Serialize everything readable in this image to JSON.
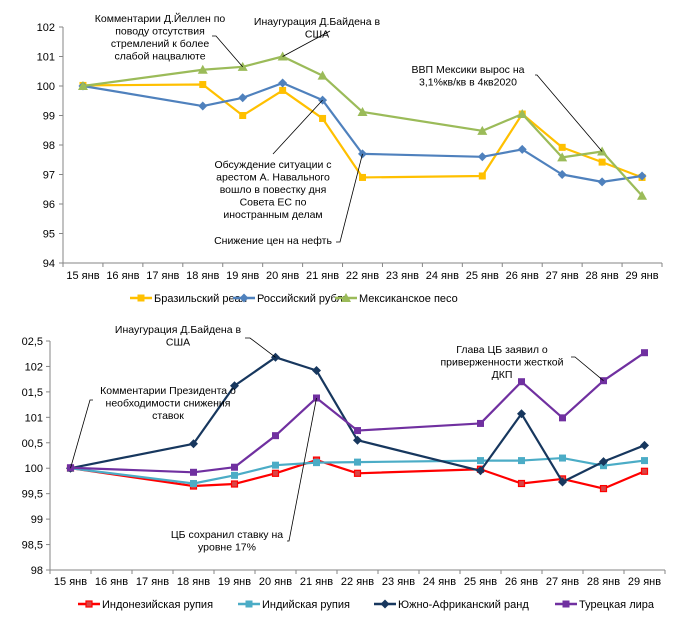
{
  "chart_data": [
    {
      "type": "line",
      "title": "",
      "xlabel": "",
      "ylabel": "",
      "ylim": [
        94,
        102
      ],
      "yticks": [
        "94",
        "95",
        "96",
        "97",
        "98",
        "99",
        "100",
        "101",
        "102"
      ],
      "categories": [
        "15 янв",
        "16 янв",
        "17 янв",
        "18 янв",
        "19 янв",
        "20 янв",
        "21 янв",
        "22 янв",
        "23 янв",
        "24 янв",
        "25 янв",
        "26 янв",
        "27 янв",
        "28 янв",
        "29 янв"
      ],
      "grid": false,
      "legend_position": "bottom",
      "series": [
        {
          "name": "Бразильский реал",
          "color": "#FFC000",
          "marker": "square",
          "values": [
            100.02,
            null,
            null,
            100.05,
            99.0,
            99.85,
            98.9,
            96.9,
            null,
            null,
            96.95,
            99.05,
            97.92,
            97.42,
            96.9
          ]
        },
        {
          "name": "Российский рубль",
          "color": "#4F81BD",
          "marker": "diamond",
          "values": [
            100.0,
            null,
            null,
            99.32,
            99.6,
            100.1,
            99.52,
            97.7,
            null,
            null,
            97.6,
            97.85,
            97.0,
            96.75,
            96.95
          ]
        },
        {
          "name": "Мексиканское песо",
          "color": "#9BBB59",
          "marker": "triangle",
          "values": [
            100.0,
            null,
            null,
            100.55,
            100.65,
            101.0,
            100.35,
            99.12,
            null,
            null,
            98.48,
            99.05,
            97.58,
            97.78,
            96.28
          ]
        }
      ],
      "annotations": [
        {
          "lines": [
            "Комментарии  Д.Йеллен по",
            "поводу отсутствия",
            "стремлений к более",
            "слабой нацвалюте"
          ],
          "target": {
            "series": 2,
            "category": "19 янв"
          }
        },
        {
          "lines": [
            "Инаугурация Д.Байдена в",
            "США"
          ],
          "target": {
            "series": 2,
            "category": "20 янв"
          }
        },
        {
          "lines": [
            "ВВП Мексики вырос на",
            "3,1%кв/кв в 4кв2020"
          ],
          "target": {
            "series": 2,
            "category": "28 янв"
          }
        },
        {
          "lines": [
            "Обсуждение ситуации с",
            "арестом А. Навального",
            "вошло в повестку дня",
            "Совета ЕС по",
            "иностранным делам"
          ],
          "target": {
            "series": 1,
            "category": "21 янв"
          }
        },
        {
          "lines": [
            "Снижение цен на нефть"
          ],
          "target": {
            "series": 1,
            "category": "22 янв"
          }
        }
      ]
    },
    {
      "type": "line",
      "title": "",
      "xlabel": "",
      "ylabel": "",
      "ylim": [
        98,
        102.5
      ],
      "yticks": [
        "98",
        "98,5",
        "99",
        "99,5",
        "100",
        "00,5",
        "101",
        "01,5",
        "102",
        "02,5"
      ],
      "categories": [
        "15 янв",
        "16 янв",
        "17 янв",
        "18 янв",
        "19 янв",
        "20 янв",
        "21 янв",
        "22 янв",
        "23 янв",
        "24 янв",
        "25 янв",
        "26 янв",
        "27 янв",
        "28 янв",
        "29 янв"
      ],
      "grid": false,
      "legend_position": "bottom",
      "series": [
        {
          "name": "Индонезийская рупия",
          "color": "#FF0000",
          "marker": "square-outline",
          "values": [
            100.0,
            null,
            null,
            99.65,
            99.69,
            99.9,
            100.16,
            99.9,
            null,
            null,
            99.98,
            99.7,
            99.79,
            99.6,
            99.94
          ]
        },
        {
          "name": "Индийская рупия",
          "color": "#4BACC6",
          "marker": "square",
          "values": [
            100.0,
            null,
            null,
            99.7,
            99.86,
            100.06,
            100.11,
            100.12,
            null,
            null,
            100.15,
            100.15,
            100.2,
            100.05,
            100.15
          ]
        },
        {
          "name": "Южно-Африканский ранд",
          "color": "#17375E",
          "marker": "diamond",
          "values": [
            100.0,
            null,
            null,
            100.48,
            101.62,
            102.18,
            101.92,
            100.55,
            null,
            null,
            99.95,
            101.07,
            99.73,
            100.13,
            100.45
          ]
        },
        {
          "name": "Турецкая лира",
          "color": "#7030A0",
          "marker": "square",
          "values": [
            100.01,
            null,
            null,
            99.92,
            100.02,
            100.64,
            101.38,
            100.74,
            null,
            null,
            100.88,
            101.7,
            100.99,
            101.72,
            102.27
          ]
        }
      ],
      "annotations": [
        {
          "lines": [
            "Инаугурация Д.Байдена в",
            "США"
          ],
          "target": {
            "series": 2,
            "category": "20 янв"
          }
        },
        {
          "lines": [
            "Комментарии  Президента о",
            "необходимости снижения",
            "ставок"
          ],
          "target": {
            "series": 2,
            "category": "15 янв"
          }
        },
        {
          "lines": [
            "Глава ЦБ заявил о",
            "приверженности жесткой",
            "ДКП"
          ],
          "target": {
            "series": 3,
            "category": "28 янв"
          }
        },
        {
          "lines": [
            "ЦБ сохранил ставку на",
            "уровне 17%"
          ],
          "target": {
            "series": 3,
            "category": "21 янв"
          }
        }
      ]
    }
  ]
}
